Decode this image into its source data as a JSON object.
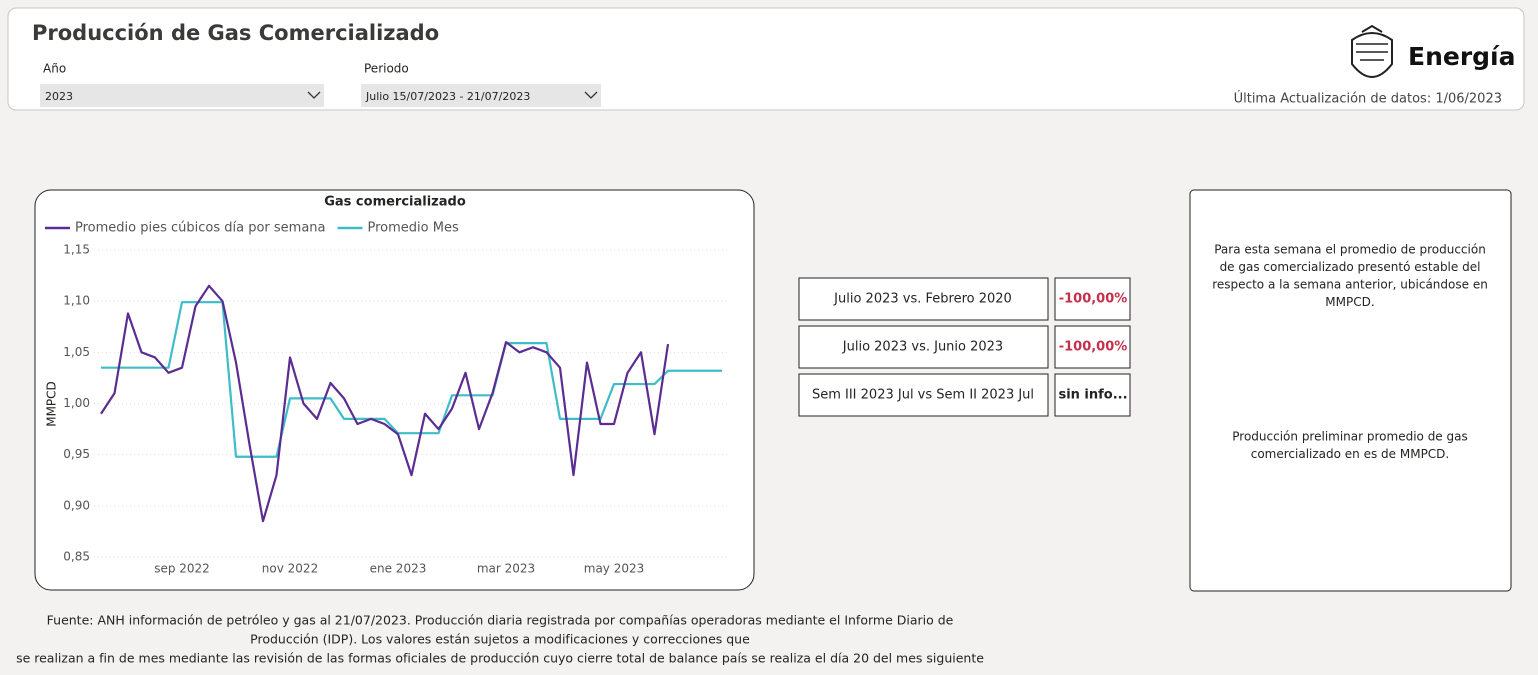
{
  "header": {
    "title": "Producción de Gas Comercializado",
    "filters": [
      {
        "label": "Año",
        "value": "2023"
      },
      {
        "label": "Periodo",
        "value": "Julio 15/07/2023 - 21/07/2023"
      }
    ],
    "logo": "Energía",
    "updated": "Última Actualización de datos: 1/06/2023"
  },
  "chart_data": {
    "type": "line",
    "title": "Gas comercializado",
    "y_label": "MMPCD",
    "categories": [
      null,
      null,
      null,
      null,
      null,
      null,
      "sep 2022",
      null,
      null,
      null,
      null,
      null,
      null,
      null,
      "nov 2022",
      null,
      null,
      null,
      null,
      null,
      null,
      null,
      "ene 2023",
      null,
      null,
      null,
      null,
      null,
      null,
      null,
      "mar 2023",
      null,
      null,
      null,
      null,
      null,
      null,
      null,
      "may 2023",
      null,
      null,
      null,
      null,
      null,
      null,
      null,
      null
    ],
    "series": [
      {
        "name": "Promedio pies cúbicos día por semana",
        "color": "#5b2c91",
        "values": [
          0.99,
          1.01,
          1.088,
          1.05,
          1.045,
          1.03,
          1.035,
          1.095,
          1.115,
          1.1,
          1.04,
          0.96,
          0.885,
          0.93,
          1.045,
          1.0,
          0.985,
          1.02,
          1.005,
          0.98,
          0.985,
          0.98,
          0.97,
          0.93,
          0.99,
          0.975,
          0.995,
          1.03,
          0.975,
          1.01,
          1.06,
          1.05,
          1.055,
          1.05,
          1.035,
          0.93,
          1.04,
          0.98,
          0.98,
          1.03,
          1.05,
          0.97,
          1.058,
          null,
          null,
          null,
          null
        ]
      },
      {
        "name": "Promedio Mes",
        "color": "#3dbdc8",
        "values": [
          1.035,
          1.035,
          1.035,
          1.035,
          1.035,
          1.035,
          1.099,
          1.099,
          1.099,
          1.099,
          0.948,
          0.948,
          0.948,
          0.948,
          1.005,
          1.005,
          1.005,
          1.005,
          0.985,
          0.985,
          0.985,
          0.985,
          0.971,
          0.971,
          0.971,
          0.971,
          1.008,
          1.008,
          1.008,
          1.008,
          1.059,
          1.059,
          1.059,
          1.059,
          0.985,
          0.985,
          0.985,
          0.985,
          1.019,
          1.019,
          1.019,
          1.019,
          1.032,
          1.032,
          1.032,
          1.032,
          1.032
        ]
      }
    ],
    "ylim": [
      0.85,
      1.15
    ],
    "yticks": [
      {
        "value": 0.85,
        "label": "0,85"
      },
      {
        "value": 0.9,
        "label": "0,90"
      },
      {
        "value": 0.95,
        "label": "0,95"
      },
      {
        "value": 1.0,
        "label": "1,00"
      },
      {
        "value": 1.05,
        "label": "1,05"
      },
      {
        "value": 1.1,
        "label": "1,10"
      },
      {
        "value": 1.15,
        "label": "1,15"
      }
    ],
    "grid": true
  },
  "comparisons": [
    {
      "label": "Julio 2023 vs. Febrero 2020",
      "value": "-100,00%"
    },
    {
      "label": "Julio 2023 vs. Junio 2023",
      "value": "-100,00%"
    },
    {
      "label": "Sem III 2023 Jul vs Sem II 2023 Jul",
      "value": "sin info..."
    }
  ],
  "notes": [
    [
      "Para esta semana el promedio de producción",
      "de gas comercializado presentó estable del",
      "respecto a la semana anterior, ubicándose en",
      "MMPCD."
    ],
    [
      "Producción preliminar promedio de gas",
      "comercializado en  es de  MMPCD."
    ]
  ],
  "footer": [
    "Fuente: ANH información de petróleo y gas al 21/07/2023. Producción diaria registrada por compañías operadoras mediante el Informe Diario de",
    "Producción (IDP). Los valores están sujetos a modificaciones y correcciones que",
    "se realizan a fin de mes mediante las revisión de las formas oficiales de producción cuyo cierre total de balance país se realiza el día 20 del mes siguiente"
  ]
}
